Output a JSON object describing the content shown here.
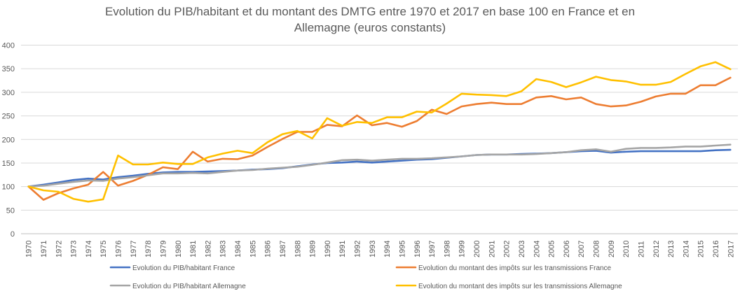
{
  "chart_data": {
    "type": "line",
    "title_lines": [
      "Evolution du PIB/habitant et du montant des DMTG entre 1970 et 2017 en base 100 en France et en",
      "Allemagne (euros constants)"
    ],
    "xlabel": "",
    "ylabel": "",
    "ylim": [
      0,
      400
    ],
    "y_ticks": [
      0,
      50,
      100,
      150,
      200,
      250,
      300,
      350,
      400
    ],
    "grid": true,
    "legend_position": "bottom",
    "categories": [
      "1970",
      "1971",
      "1972",
      "1973",
      "1974",
      "1975",
      "1976",
      "1977",
      "1978",
      "1979",
      "1980",
      "1981",
      "1982",
      "1983",
      "1984",
      "1985",
      "1986",
      "1987",
      "1988",
      "1989",
      "1990",
      "1991",
      "1992",
      "1993",
      "1994",
      "1995",
      "1996",
      "1997",
      "1998",
      "1999",
      "2000",
      "2001",
      "2002",
      "2003",
      "2004",
      "2005",
      "2006",
      "2007",
      "2008",
      "2009",
      "2010",
      "2011",
      "2012",
      "2013",
      "2014",
      "2015",
      "2016",
      "2017"
    ],
    "series": [
      {
        "name": "Evolution du PIB/habitant France",
        "color": "#4472c4",
        "values": [
          100,
          104,
          109,
          114,
          117,
          115,
          120,
          123,
          127,
          130,
          131,
          131,
          132,
          133,
          134,
          136,
          137,
          139,
          143,
          147,
          150,
          151,
          153,
          151,
          153,
          155,
          157,
          158,
          161,
          164,
          167,
          168,
          168,
          169,
          170,
          171,
          173,
          175,
          176,
          172,
          174,
          175,
          175,
          175,
          175,
          175,
          177,
          178
        ]
      },
      {
        "name": "Evolution du montant des impôts sur les transmissions France",
        "color": "#ed7d31",
        "values": [
          100,
          72,
          86,
          96,
          104,
          131,
          102,
          112,
          125,
          141,
          137,
          174,
          153,
          159,
          158,
          166,
          184,
          201,
          216,
          216,
          231,
          228,
          251,
          230,
          235,
          227,
          239,
          263,
          254,
          270,
          275,
          278,
          275,
          275,
          289,
          292,
          285,
          289,
          275,
          270,
          272,
          280,
          291,
          297,
          297,
          315,
          315,
          331
        ]
      },
      {
        "name": "Evolution du PIB/habitant Allemagne",
        "color": "#a5a5a5",
        "values": [
          100,
          102,
          106,
          110,
          113,
          112,
          117,
          120,
          124,
          128,
          128,
          129,
          128,
          131,
          134,
          135,
          138,
          140,
          142,
          146,
          151,
          156,
          157,
          155,
          157,
          159,
          159,
          160,
          162,
          164,
          167,
          168,
          168,
          168,
          169,
          171,
          173,
          177,
          179,
          174,
          180,
          182,
          182,
          183,
          185,
          185,
          187,
          189
        ]
      },
      {
        "name": "Evolution du montant des impôts sur les transmissions Allemagne",
        "color": "#ffc000",
        "values": [
          100,
          92,
          89,
          74,
          68,
          73,
          166,
          147,
          147,
          151,
          148,
          148,
          162,
          170,
          176,
          171,
          194,
          211,
          218,
          202,
          245,
          229,
          237,
          235,
          247,
          247,
          259,
          257,
          276,
          297,
          295,
          294,
          292,
          302,
          328,
          322,
          311,
          321,
          333,
          326,
          323,
          316,
          316,
          322,
          339,
          355,
          364,
          349
        ]
      }
    ]
  }
}
